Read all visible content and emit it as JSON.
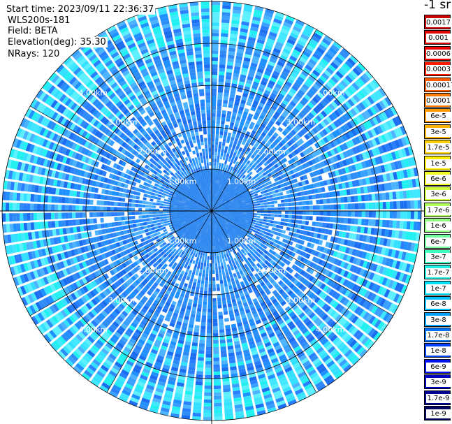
{
  "info": {
    "start_time": "Start time: 2023/09/11 22:36:37",
    "instrument": "WLS200s-181",
    "field": "Field: BETA",
    "elevation": "Elevation(deg): 35.30",
    "nrays": "NRays: 120"
  },
  "unit_label": "-1 sr",
  "chart_data": {
    "type": "heatmap",
    "projection": "polar",
    "field": "BETA",
    "elevation_deg": 35.3,
    "nrays": 120,
    "range_rings_km": [
      1.0,
      2.0,
      3.0,
      4.0
    ],
    "range_ring_labels": [
      "1.00km",
      "2.00km",
      "3.00km",
      "4.00km"
    ],
    "grid": true,
    "colorbar": {
      "position": "right",
      "ticks": [
        "0.0017",
        "0.001",
        "0.0006",
        "0.0003",
        "0.00017",
        "0.0001",
        "6e-5",
        "3e-5",
        "1.7e-5",
        "1e-5",
        "6e-6",
        "3e-6",
        "1.7e-6",
        "1e-6",
        "6e-7",
        "3e-7",
        "1.7e-7",
        "1e-7",
        "6e-8",
        "3e-8",
        "1.7e-8",
        "1e-8",
        "6e-9",
        "3e-9",
        "1.7e-9",
        "1e-9"
      ],
      "colors": [
        "#cc0000",
        "#e00000",
        "#f00000",
        "#ff1a00",
        "#ff5a00",
        "#ff7a00",
        "#ff9900",
        "#ffb300",
        "#ffd000",
        "#ffee00",
        "#f0ff20",
        "#d0ff40",
        "#b0ff60",
        "#90ff80",
        "#70ffa0",
        "#40ffc0",
        "#20f0e0",
        "#00e0ff",
        "#00c0ff",
        "#00a0ff",
        "#0070ff",
        "#0040ff",
        "#0010f0",
        "#0000c0",
        "#000090",
        "#000060"
      ]
    }
  }
}
